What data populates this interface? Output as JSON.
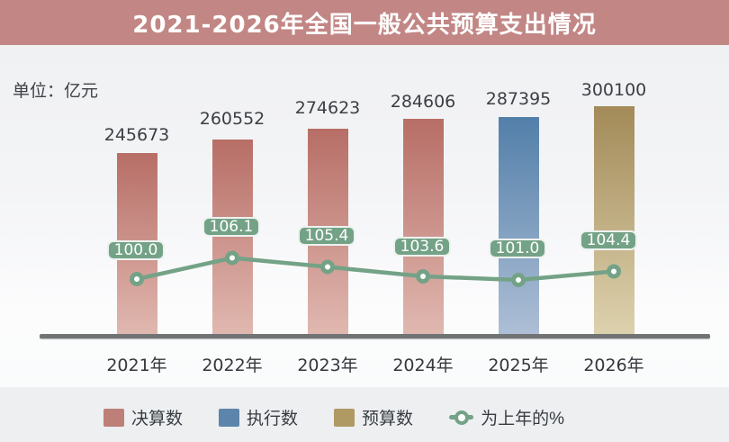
{
  "header": {
    "title": "2021-2026年全国一般公共预算支出情况"
  },
  "unit_label": "单位：亿元",
  "chart_data": {
    "type": "bar",
    "title": "2021-2026年全国一般公共预算支出情况",
    "unit": "亿元",
    "categories": [
      "2021年",
      "2022年",
      "2023年",
      "2024年",
      "2025年",
      "2026年"
    ],
    "series": [
      {
        "name": "决算数",
        "type": "bar",
        "legend_color": "#bd7f78",
        "bar_top_color": "#b76e66",
        "bar_bottom_color": "#e0b8b0",
        "values": [
          245673,
          260552,
          274623,
          284606,
          null,
          null
        ]
      },
      {
        "name": "执行数",
        "type": "bar",
        "legend_color": "#5d85ac",
        "bar_top_color": "#527fa9",
        "bar_bottom_color": "#aebfd6",
        "values": [
          null,
          null,
          null,
          null,
          287395,
          null
        ]
      },
      {
        "name": "预算数",
        "type": "bar",
        "legend_color": "#af9a64",
        "bar_top_color": "#a38a58",
        "bar_bottom_color": "#ddd2ae",
        "values": [
          null,
          null,
          null,
          null,
          null,
          300100
        ]
      },
      {
        "name": "为上年的%",
        "type": "line",
        "legend_color": "#74a287",
        "values": [
          100.0,
          106.1,
          105.4,
          103.6,
          101.0,
          104.4
        ]
      }
    ],
    "bar_value_labels": [
      "245673",
      "260552",
      "274623",
      "284606",
      "287395",
      "300100"
    ],
    "percent_labels": [
      "100.0",
      "106.1",
      "105.4",
      "103.6",
      "101.0",
      "104.4"
    ],
    "legend_position": "bottom",
    "grid": false,
    "colors": {
      "title_bar_bg": "#c28685",
      "axis": "#717375",
      "text": "#3c4046",
      "line": "#74a287",
      "background": "#eef0f2"
    }
  }
}
